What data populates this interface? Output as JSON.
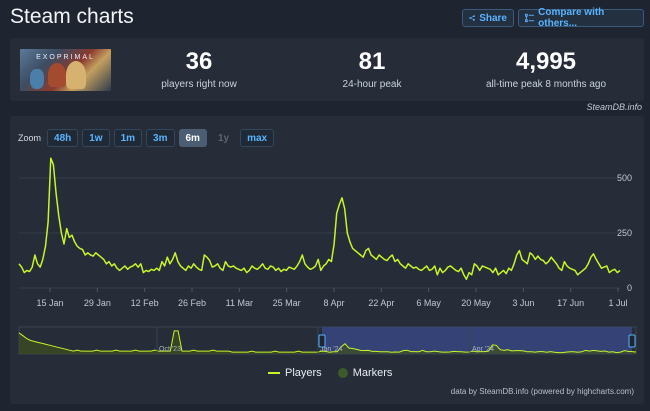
{
  "page": {
    "title": "Steam charts"
  },
  "header": {
    "share_label": "Share",
    "compare_label": "Compare with others..."
  },
  "stats": {
    "now_value": "36",
    "now_label": "players right now",
    "peak_value": "81",
    "peak_label": "24-hour peak",
    "alltime_value": "4,995",
    "alltime_label": "all-time peak 8 months ago",
    "game_logo_text": "EXOPRIMAL"
  },
  "credit": "SteamDB.info",
  "zoom": {
    "label": "Zoom",
    "buttons": [
      {
        "label": "48h",
        "state": "normal"
      },
      {
        "label": "1w",
        "state": "normal"
      },
      {
        "label": "1m",
        "state": "normal"
      },
      {
        "label": "3m",
        "state": "normal"
      },
      {
        "label": "6m",
        "state": "active"
      },
      {
        "label": "1y",
        "state": "disabled"
      },
      {
        "label": "max",
        "state": "normal"
      }
    ]
  },
  "legend": {
    "players": "Players",
    "markers": "Markers"
  },
  "footer": "data by SteamDB.info (powered by highcharts.com)",
  "colors": {
    "players_line": "#c6f52a",
    "markers": "#3e5a2a",
    "accent": "#59b3ff",
    "navigator_selection": "#3a4a8a"
  },
  "chart_data": {
    "type": "line",
    "ylim": [
      0,
      600
    ],
    "yticks": [
      0,
      250,
      500
    ],
    "xticks": [
      "15 Jan",
      "29 Jan",
      "12 Feb",
      "26 Feb",
      "11 Mar",
      "25 Mar",
      "8 Apr",
      "22 Apr",
      "6 May",
      "20 May",
      "3 Jun",
      "17 Jun",
      "1 Jul"
    ],
    "series": [
      {
        "name": "Players",
        "values": [
          110,
          95,
          70,
          80,
          75,
          95,
          150,
          110,
          95,
          130,
          190,
          300,
          590,
          560,
          430,
          330,
          250,
          200,
          270,
          230,
          240,
          210,
          190,
          180,
          175,
          150,
          160,
          150,
          145,
          160,
          150,
          140,
          130,
          110,
          120,
          100,
          110,
          90,
          80,
          90,
          100,
          85,
          95,
          100,
          110,
          95,
          110,
          70,
          80,
          75,
          85,
          80,
          90,
          80,
          120,
          100,
          140,
          110,
          130,
          160,
          120,
          100,
          90,
          80,
          100,
          90,
          110,
          95,
          85,
          80,
          150,
          140,
          125,
          95,
          100,
          110,
          90,
          80,
          120,
          100,
          95,
          100,
          90,
          85,
          80,
          90,
          70,
          80,
          100,
          90,
          85,
          95,
          110,
          90,
          85,
          100,
          95,
          80,
          90,
          75,
          85,
          80,
          95,
          90,
          85,
          100,
          120,
          150,
          110,
          95,
          85,
          90,
          100,
          130,
          80,
          100,
          110,
          130,
          120,
          200,
          340,
          380,
          410,
          360,
          250,
          210,
          180,
          170,
          160,
          150,
          140,
          170,
          180,
          150,
          140,
          130,
          150,
          140,
          130,
          125,
          140,
          150,
          120,
          130,
          110,
          100,
          90,
          110,
          100,
          90,
          95,
          85,
          80,
          90,
          100,
          80,
          85,
          100,
          60,
          90,
          70,
          80,
          95,
          100,
          90,
          80,
          75,
          90,
          60,
          40,
          70,
          60,
          110,
          100,
          80,
          100,
          95,
          90,
          85,
          70,
          90,
          60,
          70,
          80,
          65,
          90,
          80,
          110,
          150,
          170,
          130,
          120,
          110,
          160,
          150,
          130,
          145,
          130,
          125,
          110,
          120,
          140,
          125,
          110,
          90,
          80,
          120,
          100,
          90,
          85,
          80,
          60,
          70,
          80,
          90,
          110,
          140,
          155,
          130,
          110,
          90,
          95,
          100,
          70,
          80,
          85,
          70,
          80
        ]
      }
    ],
    "navigator": {
      "labels": [
        "Oct '23",
        "Jan '24",
        "Apr '24"
      ]
    }
  }
}
